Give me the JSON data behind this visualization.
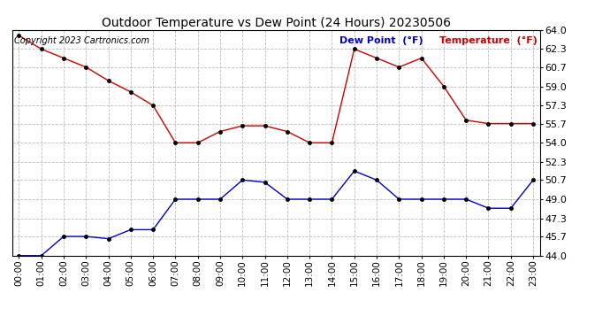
{
  "title": "Outdoor Temperature vs Dew Point (24 Hours) 20230506",
  "copyright": "Copyright 2023 Cartronics.com",
  "legend_dew": "Dew Point  (°F)",
  "legend_temp": "Temperature  (°F)",
  "hours": [
    0,
    1,
    2,
    3,
    4,
    5,
    6,
    7,
    8,
    9,
    10,
    11,
    12,
    13,
    14,
    15,
    16,
    17,
    18,
    19,
    20,
    21,
    22,
    23
  ],
  "temperature": [
    63.5,
    62.3,
    61.5,
    60.7,
    59.5,
    58.5,
    57.3,
    54.0,
    54.0,
    55.0,
    55.5,
    55.5,
    55.0,
    54.0,
    54.0,
    62.3,
    61.5,
    60.7,
    61.5,
    59.0,
    56.0,
    55.7,
    55.7,
    55.7
  ],
  "dew_point": [
    44.0,
    44.0,
    45.7,
    45.7,
    45.5,
    46.3,
    46.3,
    49.0,
    49.0,
    49.0,
    50.7,
    50.5,
    49.0,
    49.0,
    49.0,
    51.5,
    50.7,
    49.0,
    49.0,
    49.0,
    49.0,
    48.2,
    48.2,
    50.7
  ],
  "temp_color": "#cc0000",
  "dew_color": "#0000cc",
  "ylim_min": 44.0,
  "ylim_max": 64.0,
  "yticks": [
    44.0,
    45.7,
    47.3,
    49.0,
    50.7,
    52.3,
    54.0,
    55.7,
    57.3,
    59.0,
    60.7,
    62.3,
    64.0
  ],
  "background": "#ffffff",
  "grid_color": "#bbbbbb",
  "title_fontsize": 10,
  "tick_fontsize": 8,
  "copyright_fontsize": 7,
  "legend_fontsize": 8,
  "marker_size": 3,
  "line_width": 1.0
}
